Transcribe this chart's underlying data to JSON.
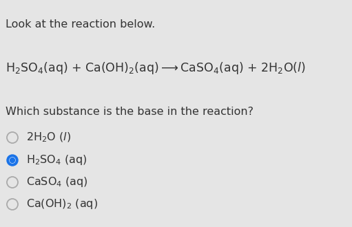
{
  "background_color": "#e5e5e5",
  "title_text": "Look at the reaction below.",
  "title_fontsize": 11.5,
  "reaction_fontsize": 12.5,
  "question_fontsize": 11.5,
  "option_fontsize": 11.5,
  "options": [
    {
      "label": "2H$_2$O ($\\it{l}$)",
      "selected": false
    },
    {
      "label": "H$_2$SO$_4$ (aq)",
      "selected": true
    },
    {
      "label": "CaSO$_4$ (aq)",
      "selected": false
    },
    {
      "label": "Ca(OH)$_2$ (aq)",
      "selected": false
    }
  ],
  "selected_color": "#1a73e8",
  "unselected_edge_color": "#aaaaaa",
  "text_color": "#333333"
}
